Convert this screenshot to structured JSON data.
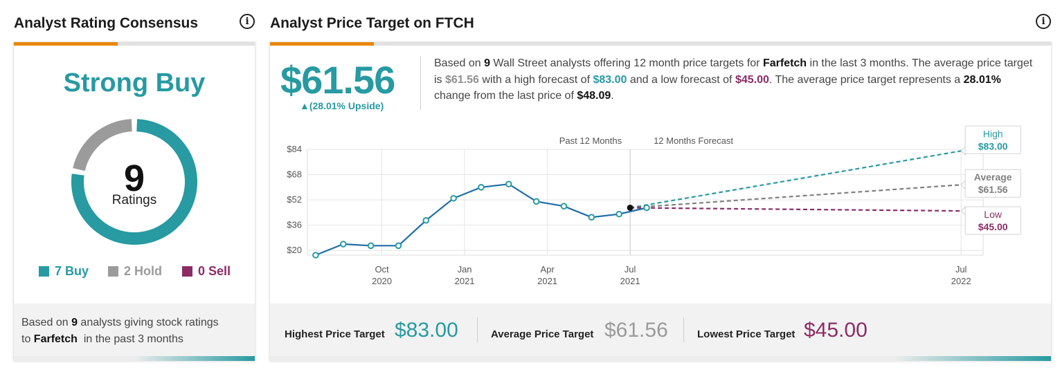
{
  "left_panel": {
    "title": "Analyst Rating Consensus",
    "consensus": "Strong Buy",
    "total_count": "9",
    "total_label": "Ratings",
    "legend": [
      {
        "label": "7 Buy",
        "count": 7,
        "color": "#279aa2"
      },
      {
        "label": "2 Hold",
        "count": 2,
        "color": "#9b9b9b"
      },
      {
        "label": "0 Sell",
        "count": 0,
        "color": "#8c2c67"
      }
    ],
    "footer": {
      "pre": "Based on ",
      "count": "9",
      "mid": " analysts giving stock ratings",
      "pre2": "to ",
      "company": "Farfetch",
      "post": "  in the past 3 months"
    }
  },
  "right_panel": {
    "title": "Analyst Price Target on FTCH",
    "avg_price": "$61.56",
    "upside_arrow": "▲",
    "upside": "(28.01% Upside)",
    "desc": {
      "p1": "Based on ",
      "n_analysts": "9",
      "p2": " Wall Street analysts offering 12 month price targets for ",
      "company": "Farfetch",
      "p3": " in the last 3 months. The average price target is ",
      "avg": "$61.56",
      "p4": " with a high forecast of ",
      "high": "$83.00",
      "p5": " and a low forecast of ",
      "low": "$45.00",
      "p6": ". The average price target represents a ",
      "change": "28.01%",
      "p7": " change from the last price of ",
      "last": "$48.09",
      "p8": "."
    },
    "summary": {
      "highest_label": "Highest Price Target",
      "highest_value": "$83.00",
      "average_label": "Average Price Target",
      "average_value": "$61.56",
      "lowest_label": "Lowest Price Target",
      "lowest_value": "$45.00"
    }
  },
  "colors": {
    "teal": "#279aa2",
    "gray": "#9b9b9b",
    "maroon": "#8c2c67",
    "line": "#1f6ea8",
    "orange": "#e8860c"
  },
  "chart_data": {
    "type": "line",
    "y_ticks": [
      "$84",
      "$68",
      "$52",
      "$36",
      "$20"
    ],
    "y_tick_values": [
      84,
      68,
      52,
      36,
      20
    ],
    "ylim": [
      17,
      84
    ],
    "xlim": [
      0,
      24.5
    ],
    "x_ticks": [
      {
        "x": 2.7,
        "label1": "Oct",
        "label2": "2020"
      },
      {
        "x": 5.7,
        "label1": "Jan",
        "label2": "2021"
      },
      {
        "x": 8.7,
        "label1": "Apr",
        "label2": "2021"
      },
      {
        "x": 11.7,
        "label1": "Jul",
        "label2": "2021"
      },
      {
        "x": 23.7,
        "label1": "Jul",
        "label2": "2022"
      }
    ],
    "period_labels": {
      "past": "Past 12 Months",
      "forecast": "12 Months Forecast"
    },
    "history": {
      "x": [
        0.3,
        1.3,
        2.3,
        3.3,
        4.3,
        5.3,
        6.3,
        7.3,
        8.3,
        9.3,
        10.3,
        11.3,
        12.3
      ],
      "y": [
        17,
        24,
        23,
        23,
        39,
        53,
        60,
        62,
        51,
        48,
        41,
        43,
        47
      ]
    },
    "last_point": {
      "x": 11.7,
      "y": 47
    },
    "forecast": [
      {
        "name": "High",
        "value": "$83.00",
        "y": 83,
        "color": "#279aa2"
      },
      {
        "name": "Average",
        "value": "$61.56",
        "y": 61.56,
        "color": "#808080"
      },
      {
        "name": "Low",
        "value": "$45.00",
        "y": 45,
        "color": "#8c2c67"
      }
    ],
    "forecast_end_x": 23.7
  }
}
